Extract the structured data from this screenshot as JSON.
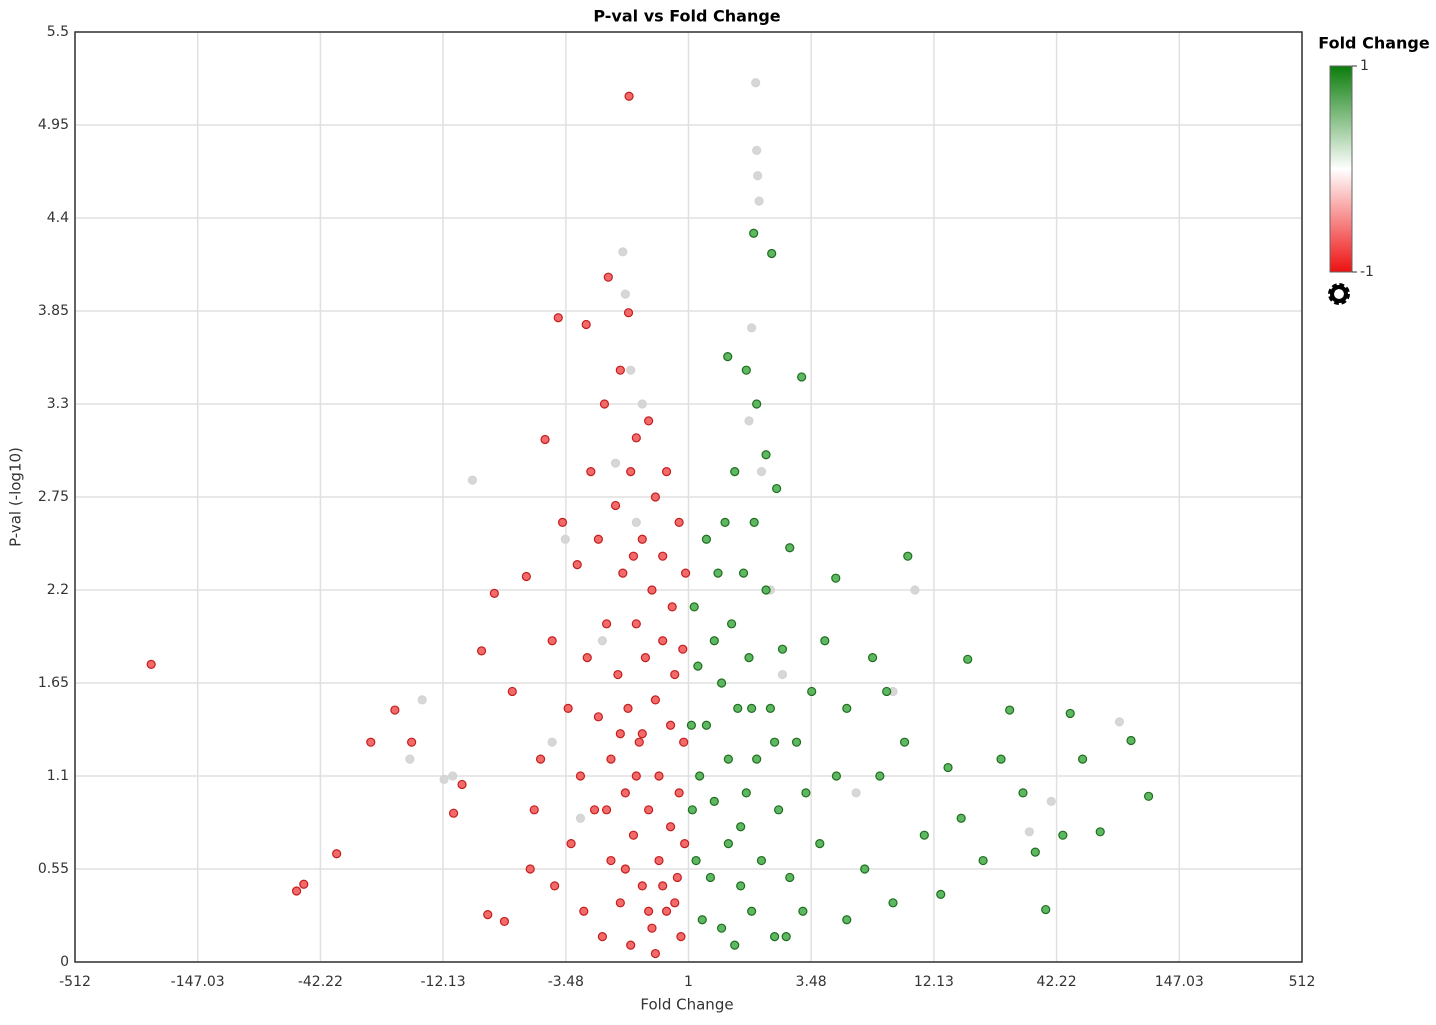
{
  "chart_data": {
    "type": "scatter",
    "title": "P-val vs Fold Change",
    "x_label": "Fold Change",
    "y_label": "P-val (-log10)",
    "xscale": "signed-log2",
    "grid": true,
    "xlim": [
      -512,
      512
    ],
    "xticks": [
      -512,
      -147.03,
      -42.22,
      -12.13,
      -3.48,
      1,
      3.48,
      12.13,
      42.22,
      147.03,
      512
    ],
    "ylim": [
      0,
      5.5
    ],
    "yticks": [
      0,
      0.55,
      1.1,
      1.65,
      2.2,
      2.75,
      3.3,
      3.85,
      4.4,
      4.95,
      5.5
    ],
    "colorbar": {
      "title": "Fold Change",
      "max": 1,
      "min": -1,
      "colors": [
        "#0b7d0b",
        "#ffffff",
        "#ee1111"
      ]
    },
    "series": [
      {
        "color": "#d3d3d3",
        "stroke": "#d3d3d3",
        "x": [
          1.98,
          2.0,
          2.02,
          2.05,
          -1.95,
          -1.9,
          -1.8,
          -1.6,
          1.9,
          1.85,
          2.1,
          2.3,
          -2.1,
          -1.7,
          -9,
          -15,
          -17,
          -12,
          -11,
          -4,
          -3.5,
          10,
          8,
          5.5,
          80,
          40,
          32,
          -2.4,
          2.6,
          -3
        ],
        "values": [
          5.2,
          4.8,
          4.65,
          4.5,
          4.2,
          3.95,
          3.5,
          3.3,
          3.75,
          3.2,
          2.9,
          2.2,
          2.95,
          2.6,
          2.85,
          1.55,
          1.2,
          1.08,
          1.1,
          1.3,
          2.5,
          2.2,
          1.6,
          1.0,
          1.42,
          0.95,
          0.77,
          1.9,
          1.7,
          0.85
        ]
      },
      {
        "color": "#f25a5a",
        "stroke": "#c41e1e",
        "x": [
          -236,
          -53.8,
          -50,
          -35.8,
          -25.3,
          -19.8,
          -16.7,
          -10.9,
          -10,
          -7.7,
          -8.2,
          -7.2,
          -5.2,
          -4.3,
          -3.76,
          -1.83,
          -2.26,
          -1.84,
          -2.83,
          -6.5,
          -6,
          -5,
          -4.8,
          -4.5,
          -4,
          -3.9,
          -3.6,
          -3.4,
          -3.3,
          -3.1,
          -3.0,
          -2.9,
          -2.8,
          -2.7,
          -2.6,
          -2.5,
          -2.5,
          -2.4,
          -2.35,
          -2.3,
          -2.2,
          -2.2,
          -2.1,
          -2.05,
          -2.0,
          -2.0,
          -1.95,
          -1.9,
          -1.85,
          -1.8,
          -1.8,
          -1.75,
          -1.7,
          -1.7,
          -1.65,
          -1.6,
          -1.6,
          -1.55,
          -1.5,
          -1.5,
          -1.45,
          -1.45,
          -1.4,
          -1.4,
          -1.35,
          -1.35,
          -1.3,
          -1.3,
          -1.25,
          -1.25,
          -1.2,
          -1.2,
          -1.18,
          -1.15,
          -1.12,
          -1.1,
          -1.1,
          -1.08,
          -1.06,
          -1.05,
          -1.04,
          -1.03,
          -1.9,
          -1.7,
          -1.5,
          -1.3,
          -1.6,
          -2.3,
          -1.15,
          -1.4,
          -1.75,
          -2.0
        ],
        "values": [
          1.76,
          0.42,
          0.46,
          0.64,
          1.3,
          1.49,
          1.3,
          0.88,
          1.05,
          0.28,
          1.84,
          2.18,
          2.28,
          3.09,
          3.81,
          5.12,
          4.05,
          3.84,
          3.77,
          0.24,
          1.6,
          0.55,
          0.9,
          1.2,
          1.9,
          0.45,
          2.6,
          1.5,
          0.7,
          2.35,
          1.1,
          0.3,
          1.8,
          2.9,
          0.9,
          1.45,
          2.5,
          0.15,
          3.3,
          2.0,
          1.2,
          0.6,
          2.7,
          1.7,
          0.35,
          3.5,
          2.3,
          1.0,
          1.5,
          2.9,
          0.1,
          0.75,
          2.0,
          3.1,
          1.3,
          0.45,
          2.5,
          1.8,
          0.9,
          3.2,
          2.2,
          0.2,
          1.55,
          2.75,
          0.6,
          1.1,
          2.4,
          1.9,
          0.3,
          2.9,
          1.4,
          0.8,
          2.1,
          1.7,
          0.5,
          2.6,
          1.0,
          0.15,
          1.85,
          1.3,
          0.7,
          2.3,
          0.55,
          1.1,
          0.3,
          0.45,
          1.35,
          0.9,
          0.35,
          0.05,
          2.4,
          1.35
        ]
      },
      {
        "color": "#4caf50",
        "stroke": "#1f6e1f",
        "x": [
          107.6,
          90,
          65.8,
          48.5,
          37.8,
          26.2,
          17.1,
          9.3,
          4.47,
          3.16,
          2.33,
          1.94,
          1.49,
          6,
          7,
          8,
          9,
          11,
          13,
          14,
          16,
          20,
          24,
          30,
          34,
          45,
          55,
          5,
          6.5,
          7.5,
          4,
          4.5,
          5,
          3.5,
          3.8,
          3.3,
          3.2,
          3.0,
          2.8,
          2.8,
          2.6,
          2.5,
          2.45,
          2.4,
          2.3,
          2.2,
          2.2,
          2.1,
          2.0,
          2.0,
          1.95,
          1.9,
          1.85,
          1.8,
          1.8,
          1.75,
          1.7,
          1.65,
          1.6,
          1.6,
          1.55,
          1.5,
          1.5,
          1.45,
          1.4,
          1.4,
          1.35,
          1.3,
          1.3,
          1.25,
          1.2,
          1.2,
          1.15,
          1.12,
          1.1,
          1.08,
          1.06,
          1.04,
          1.03,
          1.9,
          2.4,
          1.7,
          2.7
        ],
        "values": [
          0.98,
          1.31,
          0.77,
          1.47,
          0.31,
          1.49,
          1.79,
          2.4,
          2.27,
          3.46,
          4.19,
          4.31,
          3.58,
          0.55,
          1.1,
          0.35,
          1.3,
          0.75,
          0.4,
          1.15,
          0.85,
          0.6,
          1.2,
          1.0,
          0.65,
          0.75,
          1.2,
          1.5,
          1.8,
          1.6,
          1.9,
          1.1,
          0.25,
          1.6,
          0.7,
          1.0,
          0.3,
          1.3,
          2.45,
          0.5,
          1.85,
          0.9,
          2.8,
          0.15,
          1.5,
          3.0,
          2.2,
          0.6,
          1.2,
          3.3,
          2.6,
          0.3,
          1.8,
          3.5,
          1.0,
          2.3,
          0.45,
          1.5,
          2.9,
          0.1,
          2.0,
          1.2,
          0.7,
          2.6,
          1.65,
          0.2,
          2.3,
          0.95,
          1.9,
          0.5,
          1.4,
          2.5,
          0.25,
          1.1,
          1.75,
          0.6,
          2.1,
          0.9,
          1.4,
          1.5,
          1.3,
          0.8,
          0.15
        ]
      }
    ]
  }
}
